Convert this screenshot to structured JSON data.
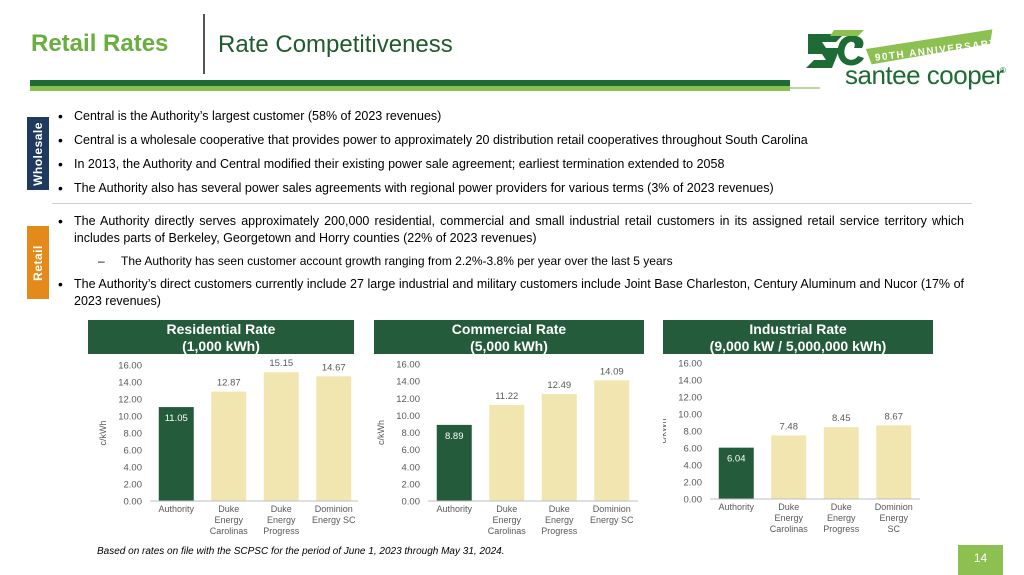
{
  "header": {
    "section_title": "Retail Rates",
    "page_title": "Rate Competitiveness"
  },
  "logo": {
    "badge": "90TH ANNIVERSARY",
    "wordmark": "santee cooper",
    "registered": "®"
  },
  "wholesale": {
    "tab_label": "Wholesale",
    "bullets": [
      "Central is the Authority’s largest customer (58% of 2023 revenues)",
      "Central is a wholesale cooperative that provides power to approximately 20 distribution retail cooperatives throughout South Carolina",
      "In 2013, the Authority and Central modified their existing power sale agreement; earliest termination extended to 2058",
      "The Authority also has several power sales agreements with regional power providers for various terms (3% of 2023 revenues)"
    ]
  },
  "retail": {
    "tab_label": "Retail",
    "bullet_1": "The Authority directly serves approximately 200,000 residential, commercial and small industrial retail customers in its assigned retail service territory which includes parts of Berkeley, Georgetown and Horry counties (22% of 2023 revenues)",
    "sub_bullet": "The Authority has seen customer account growth ranging from 2.2%-3.8% per year over the last 5 years",
    "bullet_2": "The Authority’s direct customers currently include 27 large industrial and military customers include Joint Base Charleston, Century Aluminum and Nucor (17% of 2023 revenues)"
  },
  "colors": {
    "authority_bar": "#245b3a",
    "peer_bar": "#f2e6b0",
    "header_fill": "#245b3a",
    "accent_green": "#8cc152"
  },
  "chart_data": [
    {
      "type": "bar",
      "title": "Residential Rate",
      "subtitle": "(1,000 kWh)",
      "ylabel": "c/kWh",
      "ylim": [
        0,
        16
      ],
      "yticks": [
        "0.00",
        "2.00",
        "4.00",
        "6.00",
        "8.00",
        "10.00",
        "12.00",
        "14.00",
        "16.00"
      ],
      "categories": [
        [
          "Authority"
        ],
        [
          "Duke",
          "Energy",
          "Carolinas"
        ],
        [
          "Duke",
          "Energy",
          "Progress"
        ],
        [
          "Dominion",
          "Energy SC"
        ]
      ],
      "values": [
        11.05,
        12.87,
        15.15,
        14.67
      ],
      "labels": [
        "11.05",
        "12.87",
        "15.15",
        "14.67"
      ],
      "grid": false
    },
    {
      "type": "bar",
      "title": "Commercial Rate",
      "subtitle": "(5,000 kWh)",
      "ylabel": "c/kWh",
      "ylim": [
        0,
        16
      ],
      "yticks": [
        "0.00",
        "2.00",
        "4.00",
        "6.00",
        "8.00",
        "10.00",
        "12.00",
        "14.00",
        "16.00"
      ],
      "categories": [
        [
          "Authority"
        ],
        [
          "Duke",
          "Energy",
          "Carolinas"
        ],
        [
          "Duke",
          "Energy",
          "Progress"
        ],
        [
          "Dominion",
          "Energy SC"
        ]
      ],
      "values": [
        8.89,
        11.22,
        12.49,
        14.09
      ],
      "labels": [
        "8.89",
        "11.22",
        "12.49",
        "14.09"
      ],
      "grid": false
    },
    {
      "type": "bar",
      "title": "Industrial Rate",
      "subtitle": "(9,000 kW / 5,000,000 kWh)",
      "ylabel": "c/kWh",
      "ylim": [
        0,
        16
      ],
      "yticks": [
        "0.00",
        "2.00",
        "4.00",
        "6.00",
        "8.00",
        "10.00",
        "12.00",
        "14.00",
        "16.00"
      ],
      "categories": [
        [
          "Authority"
        ],
        [
          "Duke",
          "Energy",
          "Carolinas"
        ],
        [
          "Duke",
          "Energy",
          "Progress"
        ],
        [
          "Dominion",
          "Energy",
          "SC"
        ]
      ],
      "values": [
        6.04,
        7.48,
        8.45,
        8.67
      ],
      "labels": [
        "6.04",
        "7.48",
        "8.45",
        "8.67"
      ],
      "grid": false
    }
  ],
  "footnote": "Based on rates on file with the SCPSC for the period of June 1, 2023 through May 31, 2024.",
  "page_number": "14"
}
